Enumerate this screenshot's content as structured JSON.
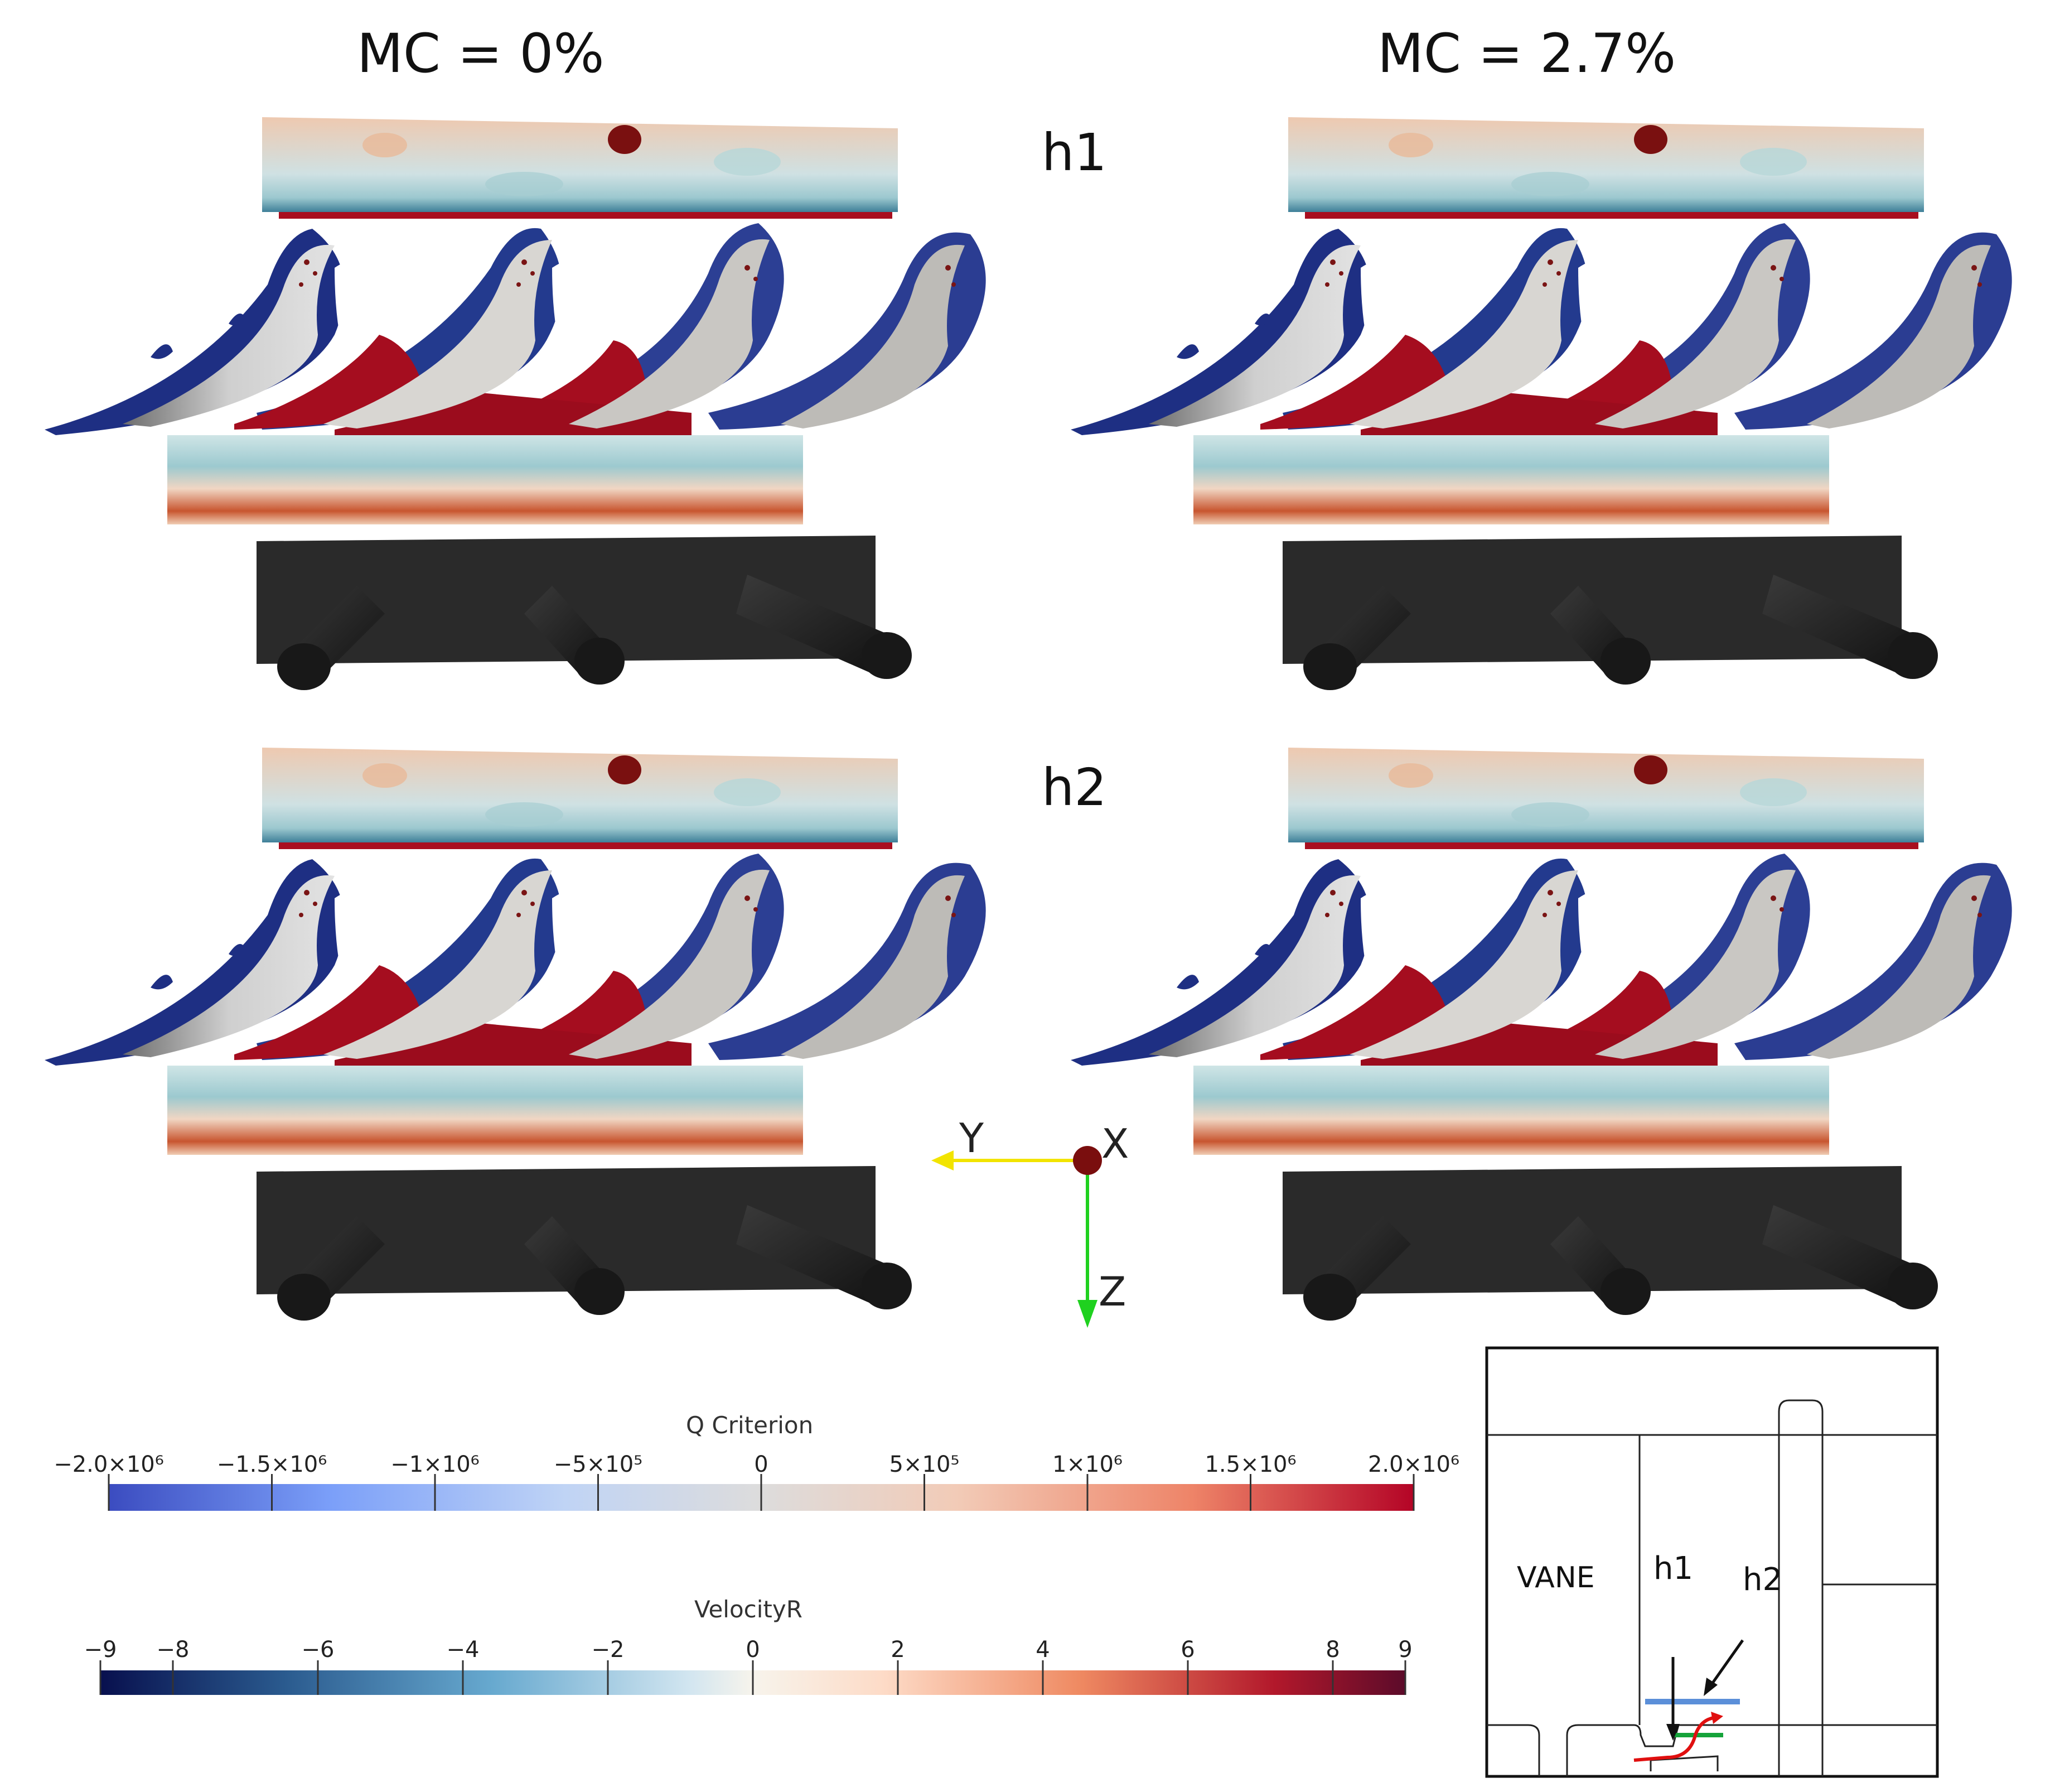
{
  "columns": [
    {
      "label": "MC = 0%"
    },
    {
      "label": "MC  = 2.7%"
    }
  ],
  "rows": [
    {
      "label": "h1"
    },
    {
      "label": "h2"
    }
  ],
  "axes_triad": {
    "y_label": "Y",
    "x_label": "X",
    "z_label": "Z",
    "y_color": "#f2e400",
    "x_color": "#7a0e0e",
    "z_color": "#1fd11f"
  },
  "colorbars": {
    "q_criterion": {
      "title": "Q Criterion",
      "ticks": [
        "−2.0×10⁶",
        "−1.5×10⁶",
        "−1×10⁶",
        "−5×10⁵",
        "0",
        "5×10⁵",
        "1×10⁶",
        "1.5×10⁶",
        "2.0×10⁶"
      ],
      "colors": [
        "#3b4cc0",
        "#7b9ff9",
        "#c0d4f5",
        "#dddcdc",
        "#f2cbb7",
        "#ee8468",
        "#b40426"
      ]
    },
    "velocity_r": {
      "title": "VelocityR",
      "ticks": [
        "−9",
        "−8",
        "−6",
        "−4",
        "−2",
        "0",
        "2",
        "4",
        "6",
        "8",
        "9"
      ],
      "colors": [
        "#08104e",
        "#2a5a8e",
        "#67a9cf",
        "#d1e5f0",
        "#f7f4ec",
        "#fddbc7",
        "#ef8a62",
        "#b2182b",
        "#5c0b2a"
      ]
    }
  },
  "inset": {
    "vane_label": "VANE",
    "h1_label": "h1",
    "h2_label": "h2"
  }
}
